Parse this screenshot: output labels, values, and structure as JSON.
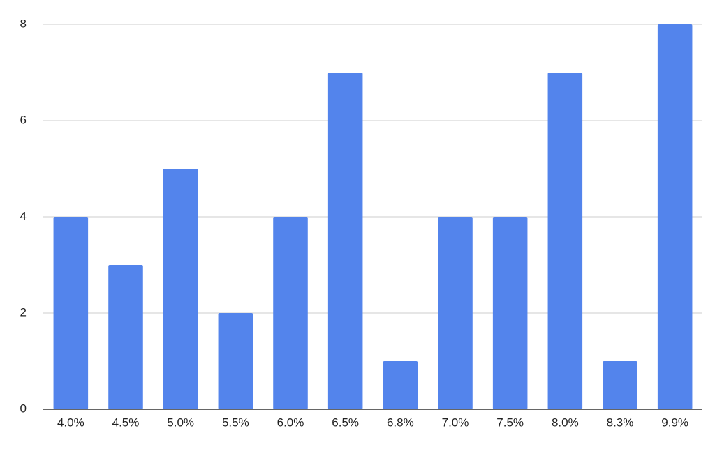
{
  "chart_data": {
    "type": "bar",
    "categories": [
      "4.0%",
      "4.5%",
      "5.0%",
      "5.5%",
      "6.0%",
      "6.5%",
      "6.8%",
      "7.0%",
      "7.5%",
      "8.0%",
      "8.3%",
      "9.9%"
    ],
    "values": [
      4,
      3,
      5,
      2,
      4,
      7,
      1,
      4,
      4,
      7,
      1,
      8
    ],
    "color": "#5384ec",
    "ylim": [
      0,
      8
    ],
    "yticks": [
      0,
      2,
      4,
      6,
      8
    ],
    "grid": true
  }
}
